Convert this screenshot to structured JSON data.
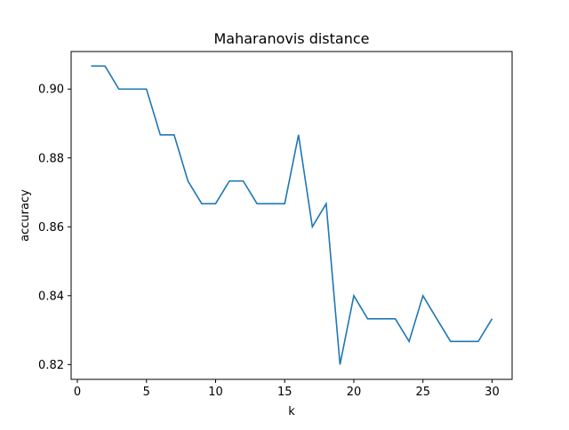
{
  "chart_data": {
    "type": "line",
    "title": "Maharanovis distance",
    "xlabel": "k",
    "ylabel": "accuracy",
    "xlim": [
      -0.45,
      31.45
    ],
    "ylim": [
      0.8157,
      0.9109
    ],
    "xticks": [
      0,
      5,
      10,
      15,
      20,
      25,
      30
    ],
    "xtick_labels": [
      "0",
      "5",
      "10",
      "15",
      "20",
      "25",
      "30"
    ],
    "yticks": [
      0.82,
      0.84,
      0.86,
      0.88,
      0.9
    ],
    "ytick_labels": [
      "0.82",
      "0.84",
      "0.86",
      "0.88",
      "0.90"
    ],
    "grid": false,
    "legend": "none",
    "series": [
      {
        "color": "#1f77b4",
        "x": [
          1,
          2,
          3,
          4,
          5,
          6,
          7,
          8,
          9,
          10,
          11,
          12,
          13,
          14,
          15,
          16,
          17,
          18,
          19,
          20,
          21,
          22,
          23,
          24,
          25,
          26,
          27,
          28,
          29,
          30
        ],
        "y": [
          0.9067,
          0.9067,
          0.9,
          0.9,
          0.9,
          0.8867,
          0.8867,
          0.8733,
          0.8667,
          0.8667,
          0.8733,
          0.8733,
          0.8667,
          0.8667,
          0.8667,
          0.8867,
          0.86,
          0.8667,
          0.82,
          0.84,
          0.8333,
          0.8333,
          0.8333,
          0.8267,
          0.84,
          0.8333,
          0.8267,
          0.8267,
          0.8267,
          0.8333
        ]
      }
    ]
  }
}
